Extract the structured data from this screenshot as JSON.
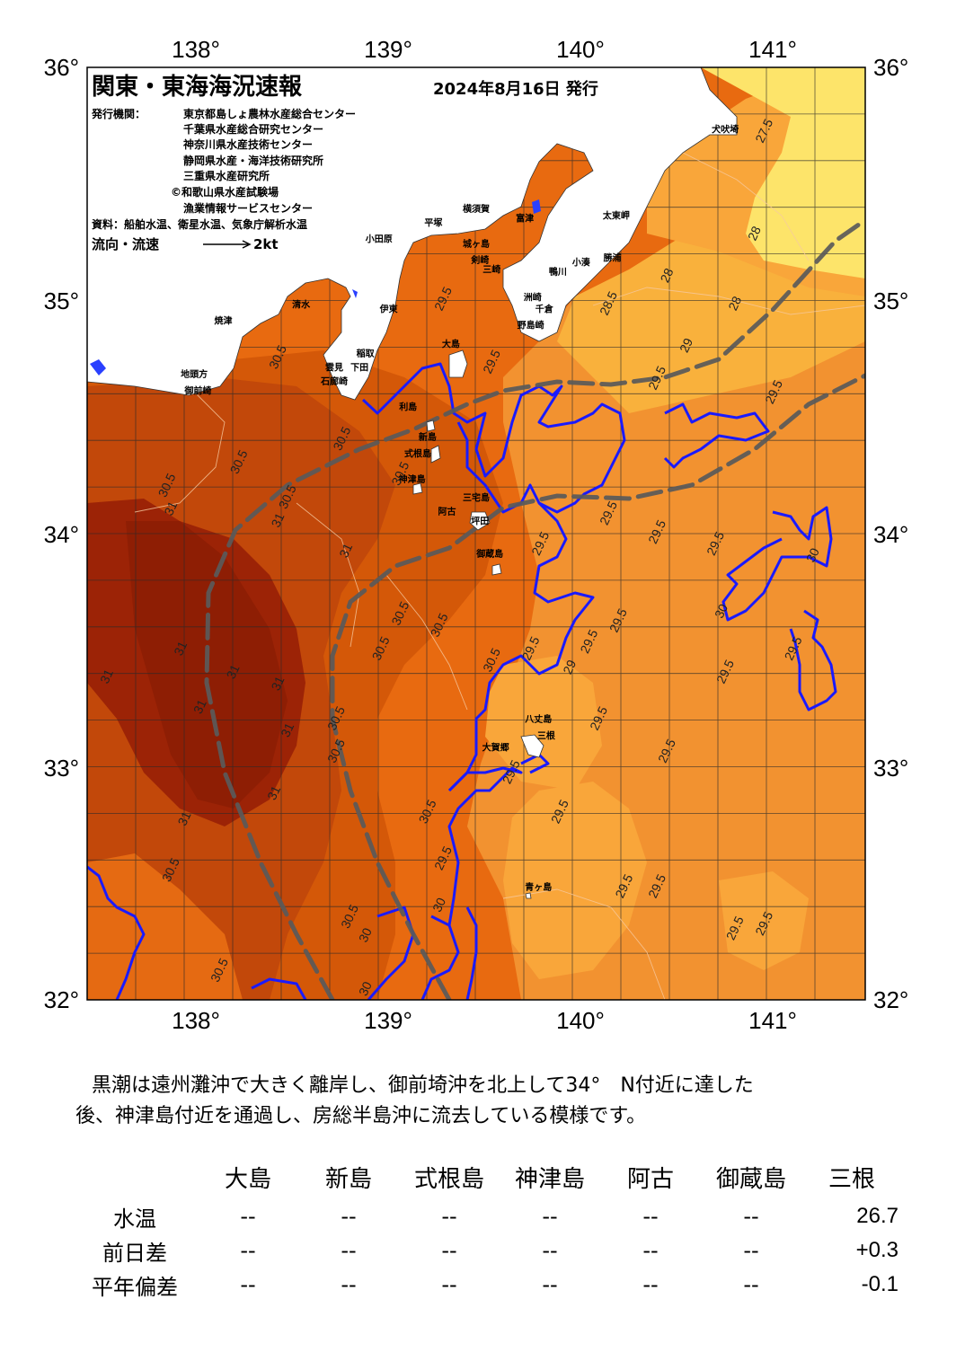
{
  "header": {
    "title": "関東・東海海況速報",
    "date": "2024年8月16日 発行"
  },
  "credits": {
    "label": "発行機関：",
    "institutions": [
      "東京都島しょ農林水産総合センター",
      "千葉県水産総合研究センター",
      "神奈川県水産技術センター",
      "静岡県水産・海洋技術研究所",
      "三重県水産研究所",
      "©和歌山県水産試験場",
      "漁業情報サービスセンター"
    ],
    "source": "資料：船舶水温、衛星水温、気象庁解析水温",
    "legend_label": "流向・流速",
    "legend_speed": "2kt"
  },
  "axes": {
    "lon_labels": [
      "138°",
      "139°",
      "140°",
      "141°"
    ],
    "lat_labels": [
      "36°",
      "35°",
      "34°",
      "33°",
      "32°"
    ],
    "lon_range": [
      137.5,
      141.5
    ],
    "lat_range": [
      32,
      36
    ]
  },
  "places": [
    {
      "name": "犬吠埼",
      "lon": 140.78,
      "lat": 35.72
    },
    {
      "name": "太東岬",
      "lon": 140.22,
      "lat": 35.35
    },
    {
      "name": "勝浦",
      "lon": 140.2,
      "lat": 35.17
    },
    {
      "name": "小湊",
      "lon": 140.04,
      "lat": 35.15
    },
    {
      "name": "鴨川",
      "lon": 139.92,
      "lat": 35.11
    },
    {
      "name": "洲崎",
      "lon": 139.79,
      "lat": 35.0
    },
    {
      "name": "千倉",
      "lon": 139.85,
      "lat": 34.95
    },
    {
      "name": "野島崎",
      "lon": 139.78,
      "lat": 34.88
    },
    {
      "name": "富津",
      "lon": 139.75,
      "lat": 35.34
    },
    {
      "name": "横須賀",
      "lon": 139.5,
      "lat": 35.38
    },
    {
      "name": "平塚",
      "lon": 139.28,
      "lat": 35.32
    },
    {
      "name": "小田原",
      "lon": 139.0,
      "lat": 35.25
    },
    {
      "name": "城ヶ島",
      "lon": 139.5,
      "lat": 35.23
    },
    {
      "name": "剣崎",
      "lon": 139.52,
      "lat": 35.16
    },
    {
      "name": "三崎",
      "lon": 139.58,
      "lat": 35.12
    },
    {
      "name": "清水",
      "lon": 138.6,
      "lat": 34.97
    },
    {
      "name": "伊東",
      "lon": 139.05,
      "lat": 34.95
    },
    {
      "name": "焼津",
      "lon": 138.2,
      "lat": 34.9
    },
    {
      "name": "稲取",
      "lon": 138.93,
      "lat": 34.76
    },
    {
      "name": "下田",
      "lon": 138.9,
      "lat": 34.7
    },
    {
      "name": "雲見",
      "lon": 138.77,
      "lat": 34.7
    },
    {
      "name": "石廊崎",
      "lon": 138.77,
      "lat": 34.64
    },
    {
      "name": "地頭方",
      "lon": 138.05,
      "lat": 34.67
    },
    {
      "name": "御前崎",
      "lon": 138.07,
      "lat": 34.6
    },
    {
      "name": "大島",
      "lon": 139.37,
      "lat": 34.8
    },
    {
      "name": "利島",
      "lon": 139.15,
      "lat": 34.53
    },
    {
      "name": "新島",
      "lon": 139.25,
      "lat": 34.4
    },
    {
      "name": "式根島",
      "lon": 139.2,
      "lat": 34.33
    },
    {
      "name": "神津島",
      "lon": 139.17,
      "lat": 34.22
    },
    {
      "name": "三宅島",
      "lon": 139.5,
      "lat": 34.14
    },
    {
      "name": "阿古",
      "lon": 139.35,
      "lat": 34.08
    },
    {
      "name": "坪田",
      "lon": 139.52,
      "lat": 34.04
    },
    {
      "name": "御蔵島",
      "lon": 139.57,
      "lat": 33.9
    },
    {
      "name": "八丈島",
      "lon": 139.82,
      "lat": 33.19
    },
    {
      "name": "三根",
      "lon": 139.86,
      "lat": 33.12
    },
    {
      "name": "大賀郷",
      "lon": 139.6,
      "lat": 33.07
    },
    {
      "name": "青ヶ島",
      "lon": 139.82,
      "lat": 32.47
    }
  ],
  "isotherm_labels": [
    {
      "text": "27.5",
      "lon": 141.0,
      "lat": 35.72
    },
    {
      "text": "28",
      "lon": 140.95,
      "lat": 35.28
    },
    {
      "text": "28",
      "lon": 140.5,
      "lat": 35.1
    },
    {
      "text": "28",
      "lon": 140.85,
      "lat": 34.98
    },
    {
      "text": "28.5",
      "lon": 140.2,
      "lat": 34.98
    },
    {
      "text": "29",
      "lon": 140.6,
      "lat": 34.8
    },
    {
      "text": "29.5",
      "lon": 140.45,
      "lat": 34.66
    },
    {
      "text": "29.5",
      "lon": 141.05,
      "lat": 34.6
    },
    {
      "text": "29.5",
      "lon": 139.6,
      "lat": 34.73
    },
    {
      "text": "29.5",
      "lon": 139.35,
      "lat": 35.0
    },
    {
      "text": "30.5",
      "lon": 138.5,
      "lat": 34.75
    },
    {
      "text": "30.5",
      "lon": 138.83,
      "lat": 34.4
    },
    {
      "text": "30.5",
      "lon": 138.3,
      "lat": 34.3
    },
    {
      "text": "30.5",
      "lon": 137.93,
      "lat": 34.2
    },
    {
      "text": "30.5",
      "lon": 138.55,
      "lat": 34.15
    },
    {
      "text": "30.5",
      "lon": 139.13,
      "lat": 34.25
    },
    {
      "text": "31",
      "lon": 137.95,
      "lat": 34.1
    },
    {
      "text": "31",
      "lon": 138.5,
      "lat": 34.05
    },
    {
      "text": "31",
      "lon": 138.85,
      "lat": 33.92
    },
    {
      "text": "29.5",
      "lon": 140.2,
      "lat": 34.08
    },
    {
      "text": "29.5",
      "lon": 140.45,
      "lat": 34.0
    },
    {
      "text": "29.5",
      "lon": 140.75,
      "lat": 33.95
    },
    {
      "text": "29.5",
      "lon": 139.85,
      "lat": 33.95
    },
    {
      "text": "30",
      "lon": 141.25,
      "lat": 33.9
    },
    {
      "text": "30",
      "lon": 140.78,
      "lat": 33.66
    },
    {
      "text": "30.5",
      "lon": 139.13,
      "lat": 33.65
    },
    {
      "text": "30.5",
      "lon": 139.33,
      "lat": 33.6
    },
    {
      "text": "30.5",
      "lon": 139.03,
      "lat": 33.5
    },
    {
      "text": "29.5",
      "lon": 140.25,
      "lat": 33.62
    },
    {
      "text": "29.5",
      "lon": 140.1,
      "lat": 33.53
    },
    {
      "text": "29.5",
      "lon": 139.8,
      "lat": 33.5
    },
    {
      "text": "30.5",
      "lon": 139.6,
      "lat": 33.45
    },
    {
      "text": "29",
      "lon": 140.0,
      "lat": 33.42
    },
    {
      "text": "29.5",
      "lon": 140.8,
      "lat": 33.4
    },
    {
      "text": "29.5",
      "lon": 141.15,
      "lat": 33.5
    },
    {
      "text": "31",
      "lon": 138.0,
      "lat": 33.5
    },
    {
      "text": "31",
      "lon": 138.27,
      "lat": 33.4
    },
    {
      "text": "31",
      "lon": 138.5,
      "lat": 33.35
    },
    {
      "text": "31",
      "lon": 137.62,
      "lat": 33.38
    },
    {
      "text": "31",
      "lon": 138.1,
      "lat": 33.25
    },
    {
      "text": "31",
      "lon": 138.55,
      "lat": 33.15
    },
    {
      "text": "30.5",
      "lon": 138.8,
      "lat": 33.2
    },
    {
      "text": "30.5",
      "lon": 138.8,
      "lat": 33.06
    },
    {
      "text": "29.5",
      "lon": 140.15,
      "lat": 33.2
    },
    {
      "text": "29.5",
      "lon": 140.5,
      "lat": 33.06
    },
    {
      "text": "29.5",
      "lon": 139.7,
      "lat": 32.97
    },
    {
      "text": "31",
      "lon": 138.48,
      "lat": 32.88
    },
    {
      "text": "31",
      "lon": 138.02,
      "lat": 32.77
    },
    {
      "text": "30.5",
      "lon": 139.27,
      "lat": 32.8
    },
    {
      "text": "29.5",
      "lon": 139.95,
      "lat": 32.8
    },
    {
      "text": "29.5",
      "lon": 139.35,
      "lat": 32.6
    },
    {
      "text": "30.5",
      "lon": 137.95,
      "lat": 32.55
    },
    {
      "text": "30.5",
      "lon": 138.87,
      "lat": 32.35
    },
    {
      "text": "30",
      "lon": 138.95,
      "lat": 32.27
    },
    {
      "text": "30",
      "lon": 139.33,
      "lat": 32.4
    },
    {
      "text": "29.5",
      "lon": 140.28,
      "lat": 32.48
    },
    {
      "text": "29.5",
      "lon": 140.45,
      "lat": 32.48
    },
    {
      "text": "29.5",
      "lon": 140.85,
      "lat": 32.3
    },
    {
      "text": "29.5",
      "lon": 141.0,
      "lat": 32.32
    },
    {
      "text": "30.5",
      "lon": 138.2,
      "lat": 32.12
    },
    {
      "text": "30",
      "lon": 138.95,
      "lat": 32.04
    }
  ],
  "colors": {
    "zone_yellow": "#fde46a",
    "zone_light": "#f9b13c",
    "zone_mid": "#f08a25",
    "zone_orange": "#e86a10",
    "zone_dark": "#d45808",
    "zone_darker": "#b83f05",
    "zone_deep": "#9c2306",
    "isotherm_blue": "#1a1aff",
    "kuroshio": "#5a5a5a"
  },
  "summary": {
    "text_line1": "黒潮は遠州灘沖で大きく離岸し、御前埼沖を北上して34°　N付近に達した",
    "text_line2": "後、神津島付近を通過し、房総半島沖に流去している模様です。"
  },
  "stations_table": {
    "columns": [
      "大島",
      "新島",
      "式根島",
      "神津島",
      "阿古",
      "御蔵島",
      "三根"
    ],
    "rows": [
      {
        "label": "水温",
        "values": [
          "--",
          "--",
          "--",
          "--",
          "--",
          "--",
          "26.7"
        ]
      },
      {
        "label": "前日差",
        "values": [
          "--",
          "--",
          "--",
          "--",
          "--",
          "--",
          "+0.3"
        ]
      },
      {
        "label": "平年偏差",
        "values": [
          "--",
          "--",
          "--",
          "--",
          "--",
          "--",
          "-0.1"
        ]
      }
    ]
  }
}
